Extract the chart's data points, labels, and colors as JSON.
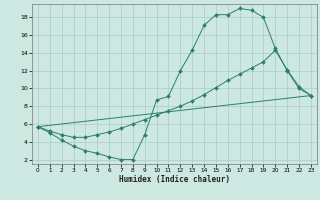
{
  "xlabel": "Humidex (Indice chaleur)",
  "background_color": "#cce8e0",
  "grid_color": "#aacccc",
  "line_color": "#2e7d72",
  "xlim": [
    -0.5,
    23.5
  ],
  "ylim": [
    1.5,
    19.5
  ],
  "yticks": [
    2,
    4,
    6,
    8,
    10,
    12,
    14,
    16,
    18
  ],
  "xticks": [
    0,
    1,
    2,
    3,
    4,
    5,
    6,
    7,
    8,
    9,
    10,
    11,
    12,
    13,
    14,
    15,
    16,
    17,
    18,
    19,
    20,
    21,
    22,
    23
  ],
  "curve1_x": [
    0,
    1,
    2,
    3,
    4,
    5,
    6,
    7,
    8,
    9,
    10,
    11,
    12,
    13,
    14,
    15,
    16,
    17,
    18,
    19,
    20,
    21,
    22,
    23
  ],
  "curve1_y": [
    5.7,
    5.0,
    4.2,
    3.5,
    3.0,
    2.7,
    2.3,
    2.0,
    2.0,
    4.8,
    8.7,
    9.1,
    12.0,
    14.3,
    17.1,
    18.3,
    18.3,
    19.0,
    18.8,
    18.0,
    14.5,
    12.0,
    10.0,
    9.2
  ],
  "curve2_x": [
    0,
    1,
    2,
    3,
    4,
    5,
    6,
    7,
    8,
    9,
    10,
    11,
    12,
    13,
    14,
    15,
    16,
    17,
    18,
    19,
    20,
    21,
    22,
    23
  ],
  "curve2_y": [
    5.7,
    5.2,
    4.8,
    4.5,
    4.5,
    4.8,
    5.1,
    5.5,
    6.0,
    6.5,
    7.0,
    7.5,
    8.0,
    8.6,
    9.3,
    10.1,
    10.9,
    11.6,
    12.3,
    13.0,
    14.3,
    12.1,
    10.2,
    9.2
  ],
  "curve3_x": [
    0,
    23
  ],
  "curve3_y": [
    5.7,
    9.2
  ]
}
